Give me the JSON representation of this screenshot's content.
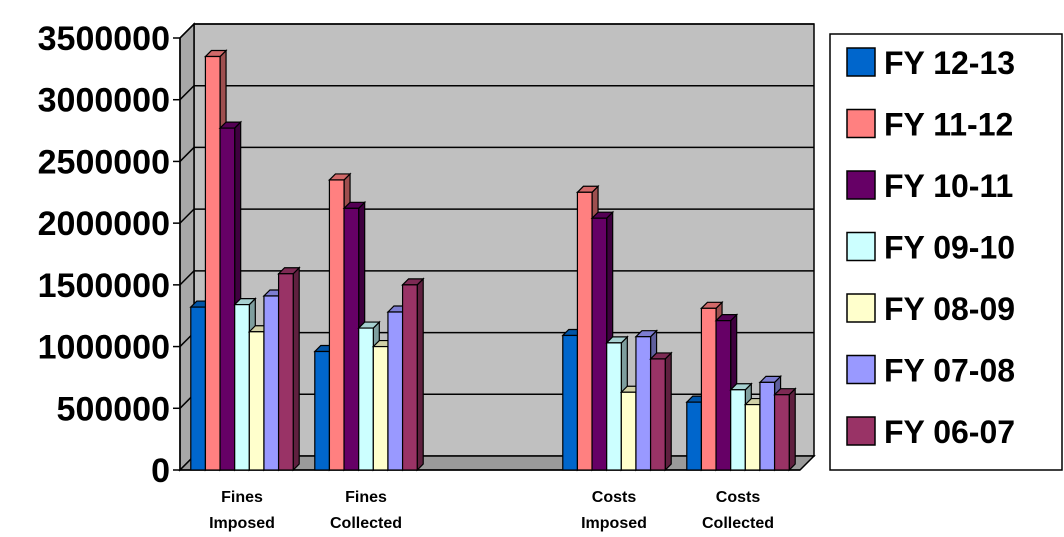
{
  "chart_data": {
    "type": "bar",
    "title": "",
    "xlabel": "",
    "ylabel": "",
    "ylim": [
      0,
      3500000
    ],
    "yticks": [
      0,
      500000,
      1000000,
      1500000,
      2000000,
      2500000,
      3000000,
      3500000
    ],
    "ytick_labels": [
      "0",
      "500000",
      "1000000",
      "1500000",
      "2000000",
      "2500000",
      "3000000",
      "3500000"
    ],
    "grid": true,
    "legend_position": "right",
    "categories": [
      {
        "line1": "Fines",
        "line2": "Imposed"
      },
      {
        "line1": "Fines",
        "line2": "Collected"
      },
      {
        "line1": "",
        "line2": ""
      },
      {
        "line1": "Costs",
        "line2": "Imposed"
      },
      {
        "line1": "Costs",
        "line2": "Collected"
      }
    ],
    "series": [
      {
        "name": "FY 12-13",
        "color": "#0066cc",
        "values": [
          1320000,
          960000,
          null,
          1090000,
          550000
        ]
      },
      {
        "name": "FY 11-12",
        "color": "#ff8080",
        "values": [
          3350000,
          2350000,
          null,
          2250000,
          1310000
        ]
      },
      {
        "name": "FY 10-11",
        "color": "#660066",
        "values": [
          2770000,
          2120000,
          null,
          2040000,
          1210000
        ]
      },
      {
        "name": "FY 09-10",
        "color": "#ccffff",
        "values": [
          1340000,
          1150000,
          null,
          1030000,
          650000
        ]
      },
      {
        "name": "FY 08-09",
        "color": "#ffffcc",
        "values": [
          1120000,
          1000000,
          null,
          630000,
          530000
        ]
      },
      {
        "name": "FY 07-08",
        "color": "#9999ff",
        "values": [
          1410000,
          1280000,
          null,
          1080000,
          710000
        ]
      },
      {
        "name": "FY 06-07",
        "color": "#993366",
        "values": [
          1590000,
          1500000,
          null,
          900000,
          610000
        ]
      }
    ],
    "plot_background": "#c0c0c0"
  }
}
